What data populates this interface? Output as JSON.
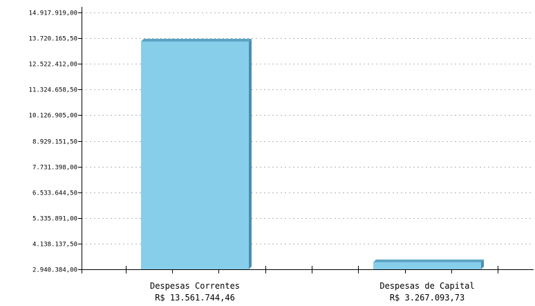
{
  "chart_data": {
    "type": "bar",
    "title": "",
    "xlabel": "",
    "ylabel": "",
    "categories": [
      "Despesas Correntes",
      "Despesas de Capital"
    ],
    "value_labels": [
      "R$ 13.561.744,46",
      "R$ 3.267.093,73"
    ],
    "values": [
      13561744.46,
      3267093.73
    ],
    "ylim": [
      2940384.0,
      14917919.0
    ],
    "y_tick_labels": [
      "2.940.384,00",
      "4.138.137,50",
      "5.335.891,00",
      "6.533.644,50",
      "7.731.398,00",
      "8.929.151,50",
      "10.126.905,00",
      "11.324.658,50",
      "12.522.412,00",
      "13.720.165,50",
      "14.917.919,00"
    ],
    "y_tick_values": [
      2940384.0,
      4138137.5,
      5335891.0,
      6533644.5,
      7731398.0,
      8929151.5,
      10126905.0,
      11324658.5,
      12522412.0,
      13720165.5,
      14917919.0
    ],
    "grid": true,
    "legend": "none",
    "colors": {
      "bar_front": "#87ceeb",
      "bar_top": "#5ba3c4",
      "bar_side": "#4a8fb0",
      "grid": "#b3b3b3",
      "axis": "#000000"
    }
  }
}
